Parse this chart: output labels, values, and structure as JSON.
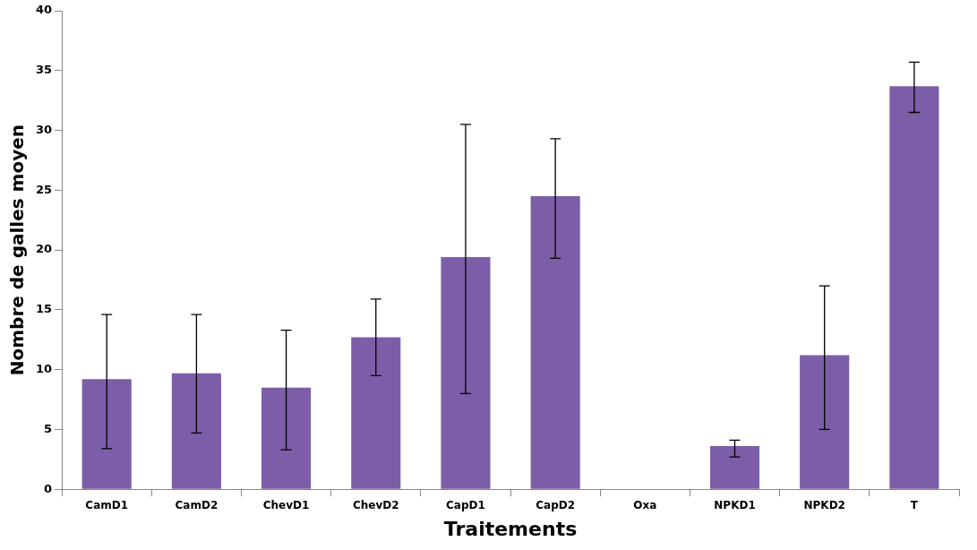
{
  "chart_data": {
    "type": "bar",
    "xlabel": "Traitements",
    "ylabel": "Nombre de galles moyen",
    "categories": [
      "CamD1",
      "CamD2",
      "ChevD1",
      "ChevD2",
      "CapD1",
      "CapD2",
      "Oxa",
      "NPKD1",
      "NPKD2",
      "T"
    ],
    "values": [
      9.2,
      9.7,
      8.5,
      12.7,
      19.4,
      24.5,
      0,
      3.6,
      11.2,
      33.7
    ],
    "errors": [
      [
        3.4,
        14.6
      ],
      [
        4.7,
        14.6
      ],
      [
        3.3,
        13.3
      ],
      [
        9.5,
        15.9
      ],
      [
        8,
        30.5
      ],
      [
        19.3,
        29.3
      ],
      null,
      [
        2.7,
        4.1
      ],
      [
        5,
        17
      ],
      [
        31.5,
        35.7
      ]
    ],
    "color": "#7b5ea7",
    "ylim": [
      0,
      40
    ],
    "yticks": [
      0,
      5,
      10,
      15,
      20,
      25,
      30,
      35,
      40
    ],
    "grid": false,
    "legend": false
  }
}
